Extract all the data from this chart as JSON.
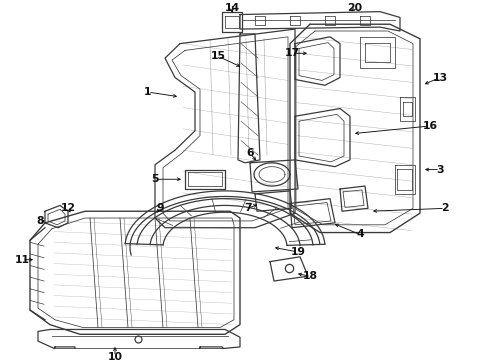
{
  "bg_color": "#ffffff",
  "line_color": "#3a3a3a",
  "lw": 0.9,
  "tlw": 0.55,
  "fs": 7.5,
  "fig_w": 4.9,
  "fig_h": 3.6,
  "dpi": 100
}
